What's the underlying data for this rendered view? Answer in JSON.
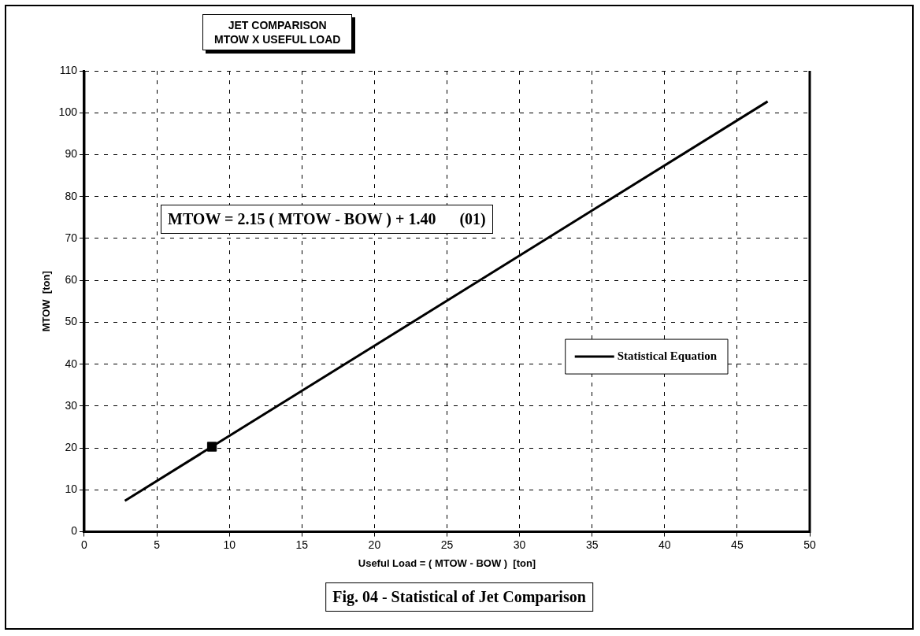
{
  "chart_data": {
    "type": "scatter",
    "title": "JET COMPARISON\nMTOW X USEFUL LOAD",
    "xlabel": "Useful Load = ( MTOW - BOW )  [ton]",
    "ylabel": "MTOW  [ton]",
    "xlim": [
      0,
      50
    ],
    "xticks": [
      0,
      5,
      10,
      15,
      20,
      25,
      30,
      35,
      40,
      45,
      50
    ],
    "ylim": [
      0,
      110
    ],
    "yticks": [
      0,
      10,
      20,
      30,
      40,
      50,
      60,
      70,
      80,
      90,
      100,
      110
    ],
    "grid": true,
    "legend": "right",
    "series": [
      {
        "type": "scatter",
        "color": "#000000",
        "marker": "square",
        "x": [
          8.8
        ],
        "values": [
          20.3
        ]
      },
      {
        "type": "line",
        "name": "Statistical Equation",
        "color": "#000000",
        "marker": "none",
        "line_style": "solid",
        "x": [
          2.8,
          47.1
        ],
        "values": [
          7.4,
          102.7
        ]
      }
    ],
    "annotations": [
      "MTOW = 2.15 ( MTOW - BOW ) + 1.40      (01)",
      "Fig. 04 - Statistical of Jet Comparison"
    ]
  }
}
